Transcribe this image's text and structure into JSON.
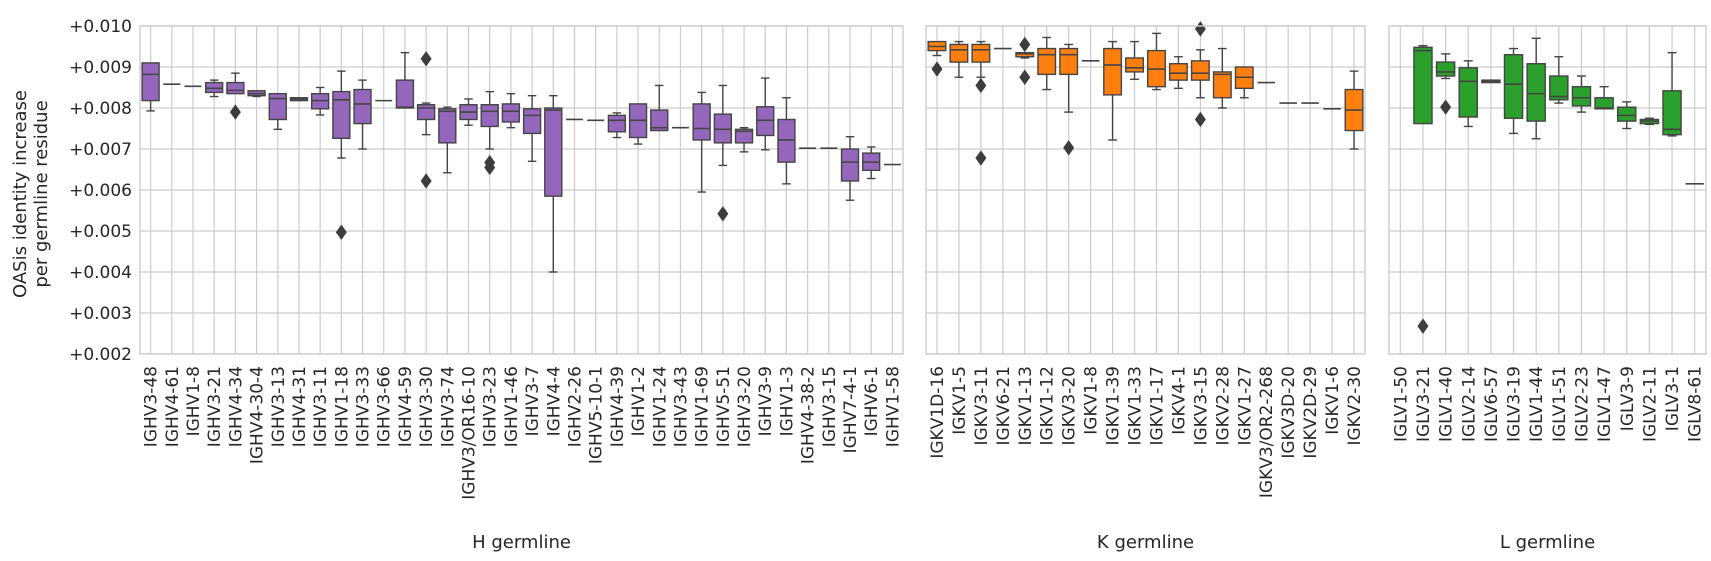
{
  "chart_data": {
    "type": "box",
    "ylabel": "OASis identity increase\nper germline residue",
    "ylim": [
      0.002,
      0.01
    ],
    "yticks": [
      "+0.002",
      "+0.003",
      "+0.004",
      "+0.005",
      "+0.006",
      "+0.007",
      "+0.008",
      "+0.009",
      "+0.010"
    ],
    "grid": true,
    "panels": [
      {
        "xlabel": "H germline",
        "color": "#9467bd",
        "categories": [
          "IGHV3-48",
          "IGHV4-61",
          "IGHV1-8",
          "IGHV3-21",
          "IGHV4-34",
          "IGHV4-30-4",
          "IGHV3-13",
          "IGHV4-31",
          "IGHV3-11",
          "IGHV1-18",
          "IGHV3-33",
          "IGHV3-66",
          "IGHV4-59",
          "IGHV3-30",
          "IGHV3-74",
          "IGHV3/OR16-10",
          "IGHV3-23",
          "IGHV1-46",
          "IGHV3-7",
          "IGHV4-4",
          "IGHV2-26",
          "IGHV5-10-1",
          "IGHV4-39",
          "IGHV1-2",
          "IGHV1-24",
          "IGHV3-43",
          "IGHV1-69",
          "IGHV5-51",
          "IGHV3-20",
          "IGHV3-9",
          "IGHV1-3",
          "IGHV4-38-2",
          "IGHV3-15",
          "IGHV7-4-1",
          "IGHV6-1",
          "IGHV1-58"
        ],
        "boxes": [
          {
            "min": 0.00793,
            "q1": 0.00818,
            "median": 0.00882,
            "q3": 0.0091,
            "max": 0.0091,
            "outliers": []
          },
          {
            "min": 0.00858,
            "q1": 0.00858,
            "median": 0.00858,
            "q3": 0.00858,
            "max": 0.00858,
            "outliers": []
          },
          {
            "min": 0.00853,
            "q1": 0.00853,
            "median": 0.00853,
            "q3": 0.00853,
            "max": 0.00853,
            "outliers": []
          },
          {
            "min": 0.00828,
            "q1": 0.00838,
            "median": 0.00848,
            "q3": 0.00862,
            "max": 0.00868,
            "outliers": []
          },
          {
            "min": 0.00835,
            "q1": 0.00835,
            "median": 0.00843,
            "q3": 0.00862,
            "max": 0.00885,
            "outliers": [
              0.0079
            ]
          },
          {
            "min": 0.00828,
            "q1": 0.0083,
            "median": 0.00835,
            "q3": 0.00842,
            "max": 0.00842,
            "outliers": []
          },
          {
            "min": 0.00748,
            "q1": 0.00772,
            "median": 0.00823,
            "q3": 0.00835,
            "max": 0.00835,
            "outliers": []
          },
          {
            "min": 0.00818,
            "q1": 0.00818,
            "median": 0.00822,
            "q3": 0.00825,
            "max": 0.00825,
            "outliers": []
          },
          {
            "min": 0.00783,
            "q1": 0.00798,
            "median": 0.00818,
            "q3": 0.00835,
            "max": 0.0085,
            "outliers": []
          },
          {
            "min": 0.00678,
            "q1": 0.00726,
            "median": 0.0082,
            "q3": 0.0084,
            "max": 0.0089,
            "outliers": [
              0.00497
            ]
          },
          {
            "min": 0.007,
            "q1": 0.00762,
            "median": 0.0081,
            "q3": 0.00845,
            "max": 0.00868,
            "outliers": []
          },
          {
            "min": 0.00818,
            "q1": 0.00818,
            "median": 0.00818,
            "q3": 0.00818,
            "max": 0.00818,
            "outliers": []
          },
          {
            "min": 0.008,
            "q1": 0.008,
            "median": 0.00802,
            "q3": 0.00868,
            "max": 0.00935,
            "outliers": []
          },
          {
            "min": 0.00735,
            "q1": 0.00772,
            "median": 0.008,
            "q3": 0.00808,
            "max": 0.00812,
            "outliers": [
              0.0092,
              0.00622
            ]
          },
          {
            "min": 0.00642,
            "q1": 0.00715,
            "median": 0.00792,
            "q3": 0.00798,
            "max": 0.00802,
            "outliers": []
          },
          {
            "min": 0.00758,
            "q1": 0.00772,
            "median": 0.0079,
            "q3": 0.00808,
            "max": 0.00822,
            "outliers": []
          },
          {
            "min": 0.007,
            "q1": 0.00755,
            "median": 0.00792,
            "q3": 0.00808,
            "max": 0.0084,
            "outliers": [
              0.00667,
              0.00655
            ]
          },
          {
            "min": 0.00752,
            "q1": 0.00766,
            "median": 0.00792,
            "q3": 0.0081,
            "max": 0.00835,
            "outliers": []
          },
          {
            "min": 0.0067,
            "q1": 0.00738,
            "median": 0.00782,
            "q3": 0.00798,
            "max": 0.0083,
            "outliers": []
          },
          {
            "min": 0.004,
            "q1": 0.00585,
            "median": 0.00795,
            "q3": 0.008,
            "max": 0.0083,
            "outliers": []
          },
          {
            "min": 0.00772,
            "q1": 0.00772,
            "median": 0.00772,
            "q3": 0.00772,
            "max": 0.00772,
            "outliers": []
          },
          {
            "min": 0.0077,
            "q1": 0.0077,
            "median": 0.0077,
            "q3": 0.0077,
            "max": 0.0077,
            "outliers": []
          },
          {
            "min": 0.00728,
            "q1": 0.00742,
            "median": 0.0077,
            "q3": 0.00782,
            "max": 0.00788,
            "outliers": []
          },
          {
            "min": 0.00712,
            "q1": 0.00728,
            "median": 0.0077,
            "q3": 0.0081,
            "max": 0.0081,
            "outliers": []
          },
          {
            "min": 0.00745,
            "q1": 0.00745,
            "median": 0.00752,
            "q3": 0.00795,
            "max": 0.00855,
            "outliers": []
          },
          {
            "min": 0.00752,
            "q1": 0.00752,
            "median": 0.00752,
            "q3": 0.00752,
            "max": 0.00752,
            "outliers": []
          },
          {
            "min": 0.00595,
            "q1": 0.00722,
            "median": 0.0075,
            "q3": 0.0081,
            "max": 0.00838,
            "outliers": []
          },
          {
            "min": 0.0066,
            "q1": 0.00715,
            "median": 0.00748,
            "q3": 0.00785,
            "max": 0.00855,
            "outliers": [
              0.00542
            ]
          },
          {
            "min": 0.00693,
            "q1": 0.00715,
            "median": 0.00743,
            "q3": 0.00748,
            "max": 0.00752,
            "outliers": []
          },
          {
            "min": 0.00698,
            "q1": 0.00733,
            "median": 0.0077,
            "q3": 0.00803,
            "max": 0.00873,
            "outliers": []
          },
          {
            "min": 0.00615,
            "q1": 0.00668,
            "median": 0.00722,
            "q3": 0.00772,
            "max": 0.00825,
            "outliers": []
          },
          {
            "min": 0.00702,
            "q1": 0.00702,
            "median": 0.00702,
            "q3": 0.00702,
            "max": 0.00702,
            "outliers": []
          },
          {
            "min": 0.00702,
            "q1": 0.00702,
            "median": 0.00702,
            "q3": 0.00702,
            "max": 0.00702,
            "outliers": []
          },
          {
            "min": 0.00575,
            "q1": 0.00622,
            "median": 0.00668,
            "q3": 0.007,
            "max": 0.0073,
            "outliers": []
          },
          {
            "min": 0.00628,
            "q1": 0.00648,
            "median": 0.00668,
            "q3": 0.0069,
            "max": 0.00705,
            "outliers": []
          },
          {
            "min": 0.00662,
            "q1": 0.00662,
            "median": 0.00662,
            "q3": 0.00662,
            "max": 0.00662,
            "outliers": []
          }
        ]
      },
      {
        "xlabel": "K germline",
        "color": "#ff7f0e",
        "categories": [
          "IGKV1D-16",
          "IGKV1-5",
          "IGKV3-11",
          "IGKV6-21",
          "IGKV1-13",
          "IGKV1-12",
          "IGKV3-20",
          "IGKV1-8",
          "IGKV1-39",
          "IGKV1-33",
          "IGKV1-17",
          "IGKV4-1",
          "IGKV3-15",
          "IGKV2-28",
          "IGKV1-27",
          "IGKV3/OR2-268",
          "IGKV3D-20",
          "IGKV2D-29",
          "IGKV1-6",
          "IGKV2-30"
        ],
        "boxes": [
          {
            "min": 0.00928,
            "q1": 0.0094,
            "median": 0.0095,
            "q3": 0.00962,
            "max": 0.00962,
            "outliers": [
              0.00895
            ]
          },
          {
            "min": 0.00875,
            "q1": 0.00912,
            "median": 0.00942,
            "q3": 0.00955,
            "max": 0.00962,
            "outliers": []
          },
          {
            "min": 0.00875,
            "q1": 0.00912,
            "median": 0.00942,
            "q3": 0.00955,
            "max": 0.00962,
            "outliers": [
              0.00855,
              0.00678
            ]
          },
          {
            "min": 0.00945,
            "q1": 0.00945,
            "median": 0.00945,
            "q3": 0.00945,
            "max": 0.00945,
            "outliers": []
          },
          {
            "min": 0.00922,
            "q1": 0.00925,
            "median": 0.00932,
            "q3": 0.00935,
            "max": 0.00935,
            "outliers": [
              0.00955,
              0.00875
            ]
          },
          {
            "min": 0.00845,
            "q1": 0.00882,
            "median": 0.0093,
            "q3": 0.00945,
            "max": 0.00972,
            "outliers": []
          },
          {
            "min": 0.0079,
            "q1": 0.00882,
            "median": 0.0093,
            "q3": 0.00945,
            "max": 0.00955,
            "outliers": [
              0.00703
            ]
          },
          {
            "min": 0.00915,
            "q1": 0.00915,
            "median": 0.00915,
            "q3": 0.00915,
            "max": 0.00915,
            "outliers": []
          },
          {
            "min": 0.00722,
            "q1": 0.00832,
            "median": 0.00905,
            "q3": 0.00945,
            "max": 0.00962,
            "outliers": []
          },
          {
            "min": 0.0087,
            "q1": 0.00888,
            "median": 0.00898,
            "q3": 0.00922,
            "max": 0.00962,
            "outliers": []
          },
          {
            "min": 0.00845,
            "q1": 0.00852,
            "median": 0.00895,
            "q3": 0.0094,
            "max": 0.00982,
            "outliers": []
          },
          {
            "min": 0.00848,
            "q1": 0.00868,
            "median": 0.00885,
            "q3": 0.00908,
            "max": 0.00925,
            "outliers": []
          },
          {
            "min": 0.00825,
            "q1": 0.00868,
            "median": 0.00885,
            "q3": 0.00915,
            "max": 0.00942,
            "outliers": [
              0.00993,
              0.00772
            ]
          },
          {
            "min": 0.008,
            "q1": 0.00825,
            "median": 0.00882,
            "q3": 0.00888,
            "max": 0.00945,
            "outliers": []
          },
          {
            "min": 0.00825,
            "q1": 0.00848,
            "median": 0.00875,
            "q3": 0.009,
            "max": 0.009,
            "outliers": []
          },
          {
            "min": 0.00862,
            "q1": 0.00862,
            "median": 0.00862,
            "q3": 0.00862,
            "max": 0.00862,
            "outliers": []
          },
          {
            "min": 0.00812,
            "q1": 0.00812,
            "median": 0.00812,
            "q3": 0.00812,
            "max": 0.00812,
            "outliers": []
          },
          {
            "min": 0.00812,
            "q1": 0.00812,
            "median": 0.00812,
            "q3": 0.00812,
            "max": 0.00812,
            "outliers": []
          },
          {
            "min": 0.00798,
            "q1": 0.00798,
            "median": 0.00798,
            "q3": 0.00798,
            "max": 0.00798,
            "outliers": []
          },
          {
            "min": 0.007,
            "q1": 0.00745,
            "median": 0.00795,
            "q3": 0.00845,
            "max": 0.0089,
            "outliers": []
          }
        ]
      },
      {
        "xlabel": "L germline",
        "color": "#2ca02c",
        "categories": [
          "IGLV1-50",
          "IGLV3-21",
          "IGLV1-40",
          "IGLV2-14",
          "IGLV6-57",
          "IGLV3-19",
          "IGLV1-44",
          "IGLV1-51",
          "IGLV2-23",
          "IGLV1-47",
          "IGLV3-9",
          "IGLV2-11",
          "IGLV3-1",
          "IGLV8-61"
        ],
        "boxes": [
          null,
          {
            "min": 0.00762,
            "q1": 0.00762,
            "median": 0.0094,
            "q3": 0.00948,
            "max": 0.00952,
            "outliers": [
              0.00268
            ]
          },
          {
            "min": 0.00872,
            "q1": 0.00878,
            "median": 0.00888,
            "q3": 0.00912,
            "max": 0.00932,
            "outliers": [
              0.00802
            ]
          },
          {
            "min": 0.00755,
            "q1": 0.00778,
            "median": 0.00865,
            "q3": 0.00898,
            "max": 0.00915,
            "outliers": []
          },
          {
            "min": 0.00862,
            "q1": 0.00862,
            "median": 0.00865,
            "q3": 0.00868,
            "max": 0.00868,
            "outliers": []
          },
          {
            "min": 0.00738,
            "q1": 0.00775,
            "median": 0.00858,
            "q3": 0.0093,
            "max": 0.00945,
            "outliers": []
          },
          {
            "min": 0.00725,
            "q1": 0.00768,
            "median": 0.00835,
            "q3": 0.00908,
            "max": 0.0097,
            "outliers": []
          },
          {
            "min": 0.00812,
            "q1": 0.0082,
            "median": 0.00828,
            "q3": 0.00878,
            "max": 0.00925,
            "outliers": []
          },
          {
            "min": 0.0079,
            "q1": 0.00805,
            "median": 0.00825,
            "q3": 0.00852,
            "max": 0.00878,
            "outliers": []
          },
          {
            "min": 0.00798,
            "q1": 0.00798,
            "median": 0.008,
            "q3": 0.00825,
            "max": 0.00852,
            "outliers": []
          },
          {
            "min": 0.0075,
            "q1": 0.00768,
            "median": 0.00782,
            "q3": 0.00802,
            "max": 0.00815,
            "outliers": []
          },
          {
            "min": 0.0076,
            "q1": 0.00762,
            "median": 0.00768,
            "q3": 0.00772,
            "max": 0.00775,
            "outliers": []
          },
          {
            "min": 0.00732,
            "q1": 0.00735,
            "median": 0.00748,
            "q3": 0.00842,
            "max": 0.00935,
            "outliers": []
          },
          {
            "min": 0.00615,
            "q1": 0.00615,
            "median": 0.00615,
            "q3": 0.00615,
            "max": 0.00615,
            "outliers": []
          }
        ]
      }
    ]
  }
}
